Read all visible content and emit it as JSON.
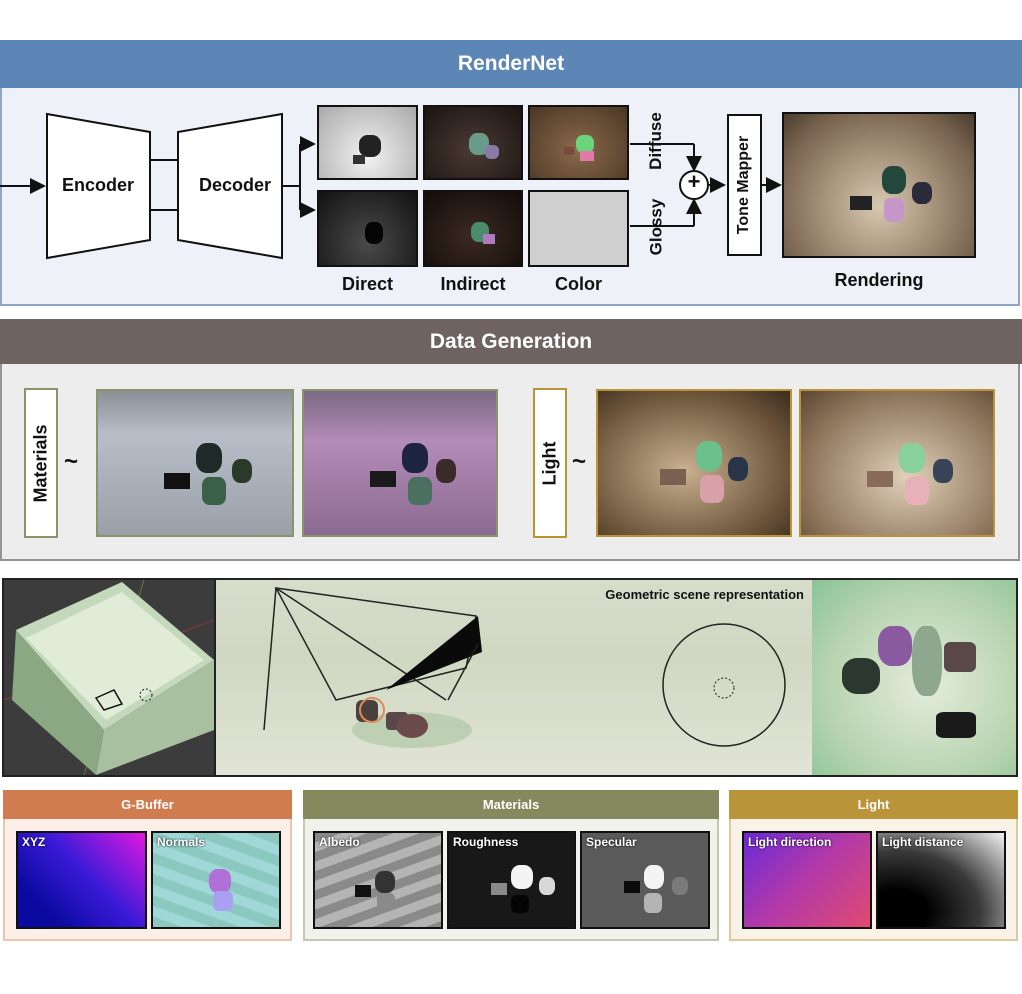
{
  "rendernet": {
    "title": "RenderNet",
    "encoder": "Encoder",
    "decoder": "Decoder",
    "col_labels": [
      "Direct",
      "Indirect",
      "Color"
    ],
    "diffuse": "Diffuse",
    "glossy": "Glossy",
    "plus": "+",
    "tone_mapper": "Tone Mapper",
    "rendering": "Rendering"
  },
  "data_generation": {
    "title": "Data Generation",
    "materials": "Materials",
    "light": "Light",
    "tilde": "~"
  },
  "geometry": {
    "label": "Geometric scene representation"
  },
  "gbuffer": {
    "title": "G-Buffer",
    "items": [
      "XYZ",
      "Normals"
    ]
  },
  "materials_buffers": {
    "title": "Materials",
    "items": [
      "Albedo",
      "Roughness",
      "Specular"
    ]
  },
  "light_buffers": {
    "title": "Light",
    "items": [
      "Light direction",
      "Light distance"
    ]
  },
  "colors": {
    "rendernet_header": "#5b86b5",
    "datagen_header": "#6e6360",
    "gbuffer_header": "#d17c4f",
    "materials_header": "#848a5d",
    "light_header": "#b99439"
  }
}
